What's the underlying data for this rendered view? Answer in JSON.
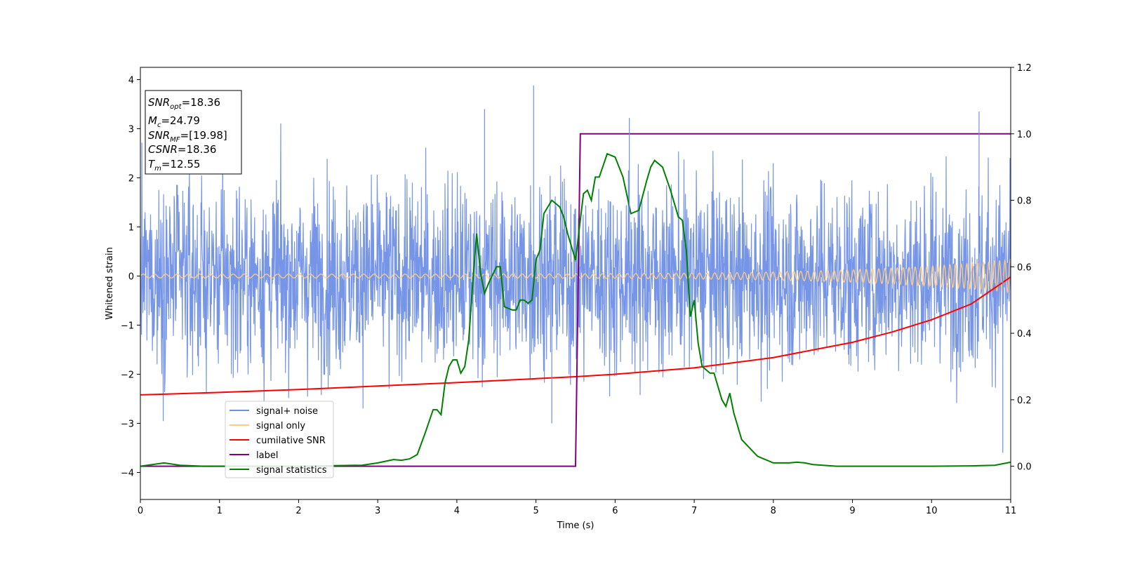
{
  "chart_data": {
    "type": "line",
    "title": "",
    "xlabel": "Time (s)",
    "ylabel": "Whitened strain",
    "xlim": [
      0,
      11
    ],
    "ylim": [
      -4.55,
      4.25
    ],
    "y2lim": [
      -0.1,
      1.2
    ],
    "xticks": [
      "0",
      "1",
      "2",
      "3",
      "4",
      "5",
      "6",
      "7",
      "8",
      "9",
      "10",
      "11"
    ],
    "yticks": [
      "4",
      "3",
      "2",
      "1",
      "0",
      "−1",
      "−2",
      "−3",
      "−4"
    ],
    "y2ticks": [
      "1.2",
      "1.0",
      "0.8",
      "0.6",
      "0.4",
      "0.2",
      "0.0"
    ],
    "info_box": {
      "snr_opt": {
        "label": "SNR",
        "sub": "opt",
        "value": "=18.36"
      },
      "mc": {
        "label": "M",
        "sub": "c",
        "value": "=24.79"
      },
      "snr_mf": {
        "label": "SNR",
        "sub": "MF",
        "value": "=[19.98]"
      },
      "csnr": {
        "label": "CSNR",
        "value": "=18.36"
      },
      "tm": {
        "label": "T",
        "sub": "m",
        "value": "=12.55"
      }
    },
    "legend_position": "lower-left",
    "legend": [
      {
        "label": "signal+ noise",
        "color": "#6f8fe6"
      },
      {
        "label": "signal only",
        "color": "#ffcc80"
      },
      {
        "label": "cumilative SNR",
        "color": "#ff0000"
      },
      {
        "label": "label",
        "color": "#800080"
      },
      {
        "label": "signal statistics",
        "color": "#008000"
      }
    ],
    "series": [
      {
        "name": "signal+ noise",
        "axis": "left",
        "style": "noise",
        "std": 0.95,
        "spikes": [
          [
            4.97,
            3.88
          ],
          [
            4.35,
            3.4
          ],
          [
            6.18,
            3.22
          ],
          [
            10.6,
            3.35
          ],
          [
            10.9,
            -3.6
          ],
          [
            5.2,
            -3.0
          ]
        ]
      },
      {
        "name": "signal only",
        "axis": "left",
        "style": "chirp",
        "amplitude_start": 0.04,
        "amplitude_end": 0.33,
        "frequency_start_hz": 7,
        "frequency_end_hz": 15
      },
      {
        "name": "cumilative SNR",
        "axis": "left",
        "x": [
          0,
          1,
          2,
          3,
          4,
          5,
          5.5,
          6,
          7,
          8,
          9,
          9.5,
          10,
          10.5,
          11
        ],
        "y": [
          -2.42,
          -2.37,
          -2.31,
          -2.24,
          -2.17,
          -2.09,
          -2.05,
          -2.0,
          -1.87,
          -1.66,
          -1.35,
          -1.14,
          -0.89,
          -0.57,
          -0.02
        ]
      },
      {
        "name": "label",
        "axis": "right",
        "x": [
          0,
          5.5,
          5.56,
          11
        ],
        "y": [
          0.0,
          0.0,
          1.0,
          1.0
        ]
      },
      {
        "name": "signal statistics",
        "axis": "right",
        "x": [
          0,
          0.3,
          0.5,
          0.8,
          1.0,
          2.0,
          2.8,
          3.0,
          3.1,
          3.2,
          3.3,
          3.4,
          3.5,
          3.6,
          3.7,
          3.75,
          3.8,
          3.85,
          3.9,
          3.95,
          4.0,
          4.05,
          4.1,
          4.15,
          4.2,
          4.25,
          4.3,
          4.35,
          4.4,
          4.5,
          4.55,
          4.6,
          4.7,
          4.75,
          4.8,
          4.85,
          4.9,
          4.95,
          5.0,
          5.05,
          5.1,
          5.15,
          5.2,
          5.3,
          5.35,
          5.4,
          5.5,
          5.6,
          5.65,
          5.7,
          5.75,
          5.8,
          5.9,
          6.0,
          6.1,
          6.2,
          6.3,
          6.4,
          6.45,
          6.5,
          6.6,
          6.7,
          6.8,
          6.85,
          6.9,
          6.95,
          7.0,
          7.05,
          7.1,
          7.2,
          7.25,
          7.3,
          7.35,
          7.4,
          7.45,
          7.5,
          7.6,
          7.8,
          8.0,
          8.2,
          8.3,
          8.4,
          8.5,
          8.8,
          9.0,
          10.0,
          10.5,
          10.8,
          11.0
        ],
        "y": [
          0.0,
          0.01,
          0.003,
          0.0,
          0.0,
          0.0,
          0.003,
          0.01,
          0.015,
          0.02,
          0.018,
          0.022,
          0.035,
          0.1,
          0.17,
          0.17,
          0.155,
          0.25,
          0.3,
          0.32,
          0.32,
          0.28,
          0.3,
          0.38,
          0.55,
          0.7,
          0.58,
          0.52,
          0.55,
          0.6,
          0.6,
          0.48,
          0.47,
          0.47,
          0.5,
          0.5,
          0.49,
          0.5,
          0.62,
          0.65,
          0.76,
          0.78,
          0.8,
          0.78,
          0.75,
          0.7,
          0.62,
          0.82,
          0.83,
          0.8,
          0.87,
          0.87,
          0.94,
          0.93,
          0.87,
          0.76,
          0.77,
          0.86,
          0.9,
          0.92,
          0.9,
          0.83,
          0.75,
          0.74,
          0.65,
          0.45,
          0.5,
          0.37,
          0.3,
          0.28,
          0.28,
          0.24,
          0.2,
          0.18,
          0.22,
          0.16,
          0.08,
          0.03,
          0.01,
          0.01,
          0.012,
          0.01,
          0.005,
          0.0,
          0.0,
          0.0,
          0.001,
          0.003,
          0.012
        ]
      }
    ]
  }
}
